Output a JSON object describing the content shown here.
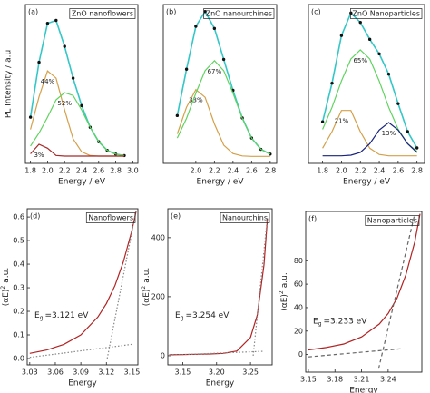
{
  "chart_data": [
    {
      "type": "line",
      "panel": "(a)",
      "box_label": "ZnO nanoflowers",
      "xlabel": "Energy / eV",
      "ylabel": "PL Intensity / a.u",
      "x": [
        1.8,
        1.9,
        2.0,
        2.1,
        2.2,
        2.3,
        2.4,
        2.5,
        2.6,
        2.7,
        2.8,
        2.9
      ],
      "xlim": [
        1.74,
        3.06
      ],
      "ylim": [
        -5,
        105
      ],
      "xticks": [
        1.8,
        {
          "value": 2,
          "label": "2.0"
        },
        2.2,
        2.4,
        2.6,
        2.8,
        {
          "value": 3,
          "label": "3.0"
        }
      ],
      "series": [
        {
          "style": "dots-line",
          "color": "#35c7c7",
          "marker_color": "#111111",
          "values": [
            27,
            65,
            92,
            94,
            76,
            54,
            35,
            20,
            10,
            4,
            1.4,
            0.4
          ]
        },
        {
          "label": "44%",
          "style": "solid",
          "color": "#d4a04a",
          "values": [
            18.5,
            41,
            59,
            54,
            32,
            12,
            3,
            0.4,
            0,
            0,
            0,
            0
          ]
        },
        {
          "label": "52%",
          "style": "solid",
          "color": "#5fd35f",
          "values": [
            7,
            16,
            27,
            39,
            44,
            42,
            32,
            20,
            10,
            4,
            1.4,
            0.4
          ]
        },
        {
          "label": "3%",
          "style": "solid",
          "color": "#a52a2a",
          "values": [
            1.6,
            8.2,
            5.5,
            0.5,
            0,
            0,
            0,
            0,
            0,
            0,
            0,
            0
          ]
        }
      ]
    },
    {
      "type": "line",
      "panel": "(b)",
      "box_label": "ZnO nanourchines",
      "xlabel": "Energy / eV",
      "x": [
        1.8,
        1.9,
        2.0,
        2.1,
        2.2,
        2.3,
        2.4,
        2.5,
        2.6,
        2.7,
        2.8
      ],
      "xlim": [
        1.65,
        2.87
      ],
      "ylim": [
        -5,
        108
      ],
      "xticks": [
        {
          "value": 2,
          "label": "2.0"
        },
        2.2,
        2.4,
        2.6,
        2.8
      ],
      "series": [
        {
          "style": "dots-line",
          "color": "#35c7c7",
          "marker_color": "#111111",
          "values": [
            29,
            62,
            92.5,
            103,
            91,
            69,
            47,
            27.3,
            13,
            5,
            1.6
          ]
        },
        {
          "label": "33%",
          "style": "solid",
          "color": "#d4a04a",
          "values": [
            16,
            35,
            47.5,
            42,
            23,
            8,
            2,
            0.3,
            0,
            0,
            0
          ]
        },
        {
          "label": "67%",
          "style": "solid",
          "color": "#5fd35f",
          "values": [
            13,
            27,
            45,
            61,
            68,
            61,
            45,
            27,
            13,
            5,
            1.6
          ]
        }
      ]
    },
    {
      "type": "line",
      "panel": "(c)",
      "box_label": "ZnO Nanoparticles",
      "xlabel": "Energy / eV",
      "x": [
        1.8,
        1.9,
        2.0,
        2.1,
        2.2,
        2.3,
        2.4,
        2.5,
        2.6,
        2.7,
        2.8
      ],
      "xlim": [
        1.65,
        2.88
      ],
      "ylim": [
        -5,
        100
      ],
      "xticks": [
        1.8,
        {
          "value": 2,
          "label": "2.0"
        },
        2.2,
        2.4,
        2.6,
        2.8
      ],
      "series": [
        {
          "style": "dots-line",
          "color": "#35c7c7",
          "marker_color": "#111111",
          "values": [
            22.5,
            48,
            79.5,
            94.4,
            88.2,
            77,
            67.4,
            54,
            34.5,
            16,
            5.2
          ]
        },
        {
          "label": "21%",
          "style": "solid",
          "color": "#d4a04a",
          "values": [
            5,
            16,
            30,
            30,
            16,
            5,
            0.9,
            0,
            0,
            0,
            0
          ]
        },
        {
          "label": "65%",
          "style": "solid",
          "color": "#5fd35f",
          "values": [
            17.5,
            32,
            49.5,
            64,
            70,
            64,
            49.5,
            32,
            17.5,
            8,
            3
          ]
        },
        {
          "label": "13%",
          "style": "solid",
          "color": "#1a237e",
          "values": [
            0,
            0,
            0,
            0.4,
            2.2,
            8,
            17,
            22,
            17,
            8,
            2.2
          ]
        }
      ]
    },
    {
      "type": "line",
      "panel": "(d)",
      "box_label": "Nanoflowers",
      "xlabel": "Energy",
      "ylabel": "(αE)",
      "ylabel_sup": "2",
      "ylabel_unit": "a.u.",
      "eg_symbol": "E",
      "eg_sub": "g",
      "eg_text": "=3.121 eV",
      "xlim": [
        3.027,
        3.157
      ],
      "ylim": [
        -0.027,
        0.635
      ],
      "xticks": [
        3.03,
        3.06,
        3.09,
        3.12,
        3.15
      ],
      "yticks": [
        {
          "value": 0,
          "label": "0.0"
        },
        0.1,
        0.2,
        0.3,
        0.4,
        0.5,
        0.6
      ],
      "series": [
        {
          "style": "solid",
          "color": "#b22222",
          "x": [
            3.03,
            3.05,
            3.07,
            3.09,
            3.11,
            3.12,
            3.13,
            3.14,
            3.15,
            3.155
          ],
          "values": [
            0.022,
            0.036,
            0.06,
            0.1,
            0.176,
            0.233,
            0.309,
            0.41,
            0.543,
            0.625
          ]
        },
        {
          "style": "dotted",
          "color": "#888888",
          "x": [
            3.121,
            3.155
          ],
          "values": [
            0,
            0.63
          ]
        },
        {
          "style": "dotted",
          "color": "#888888",
          "x": [
            3.03,
            3.15
          ],
          "values": [
            0.005,
            0.06
          ]
        }
      ]
    },
    {
      "type": "line",
      "panel": "(e)",
      "box_label": "Nanourchins",
      "xlabel": "Energy",
      "ylabel": "(αE)",
      "ylabel_sup": "2",
      "ylabel_unit": "a.u.",
      "eg_symbol": "E",
      "eg_sub": "g",
      "eg_text": "=3.254 eV",
      "xlim": [
        3.128,
        3.282
      ],
      "ylim": [
        -31,
        498
      ],
      "xticks": [
        3.15,
        {
          "value": 3.2,
          "label": "3.20"
        },
        3.25
      ],
      "yticks": [
        0,
        200,
        400
      ],
      "series": [
        {
          "style": "solid",
          "color": "#b22222",
          "x": [
            3.13,
            3.15,
            3.17,
            3.19,
            3.21,
            3.23,
            3.25,
            3.26,
            3.27,
            3.275
          ],
          "values": [
            3,
            4,
            5,
            6,
            8,
            16,
            62,
            138,
            308,
            465
          ]
        },
        {
          "style": "dotted",
          "color": "#888888",
          "x": [
            3.254,
            3.275
          ],
          "values": [
            0,
            470
          ]
        },
        {
          "style": "dotted",
          "color": "#888888",
          "x": [
            3.13,
            3.27
          ],
          "values": [
            2,
            15
          ]
        }
      ]
    },
    {
      "type": "line",
      "panel": "(f)",
      "box_label": "Nanoparticles",
      "xlabel": "Energy",
      "ylabel": "(αE)",
      "ylabel_sup": "2",
      "ylabel_unit": "a.u.",
      "eg_symbol": "E",
      "eg_sub": "g",
      "eg_text": "=3.233 eV",
      "xlim": [
        3.147,
        3.278
      ],
      "ylim": [
        -15,
        122
      ],
      "xticks": [
        3.15,
        3.18,
        3.21,
        3.24
      ],
      "yticks": [
        0,
        20,
        40,
        60,
        80
      ],
      "series": [
        {
          "style": "solid",
          "color": "#b22222",
          "x": [
            3.15,
            3.17,
            3.19,
            3.21,
            3.23,
            3.24,
            3.25,
            3.26,
            3.27,
            3.276
          ],
          "values": [
            4,
            6,
            9,
            15,
            26,
            35,
            48,
            68,
            96,
            120
          ]
        },
        {
          "style": "dashed",
          "color": "#666666",
          "x": [
            3.2293,
            3.27
          ],
          "values": [
            -12,
            120
          ]
        },
        {
          "style": "dashed",
          "color": "#666666",
          "x": [
            3.15,
            3.255
          ],
          "values": [
            -2,
            5
          ]
        }
      ]
    }
  ]
}
